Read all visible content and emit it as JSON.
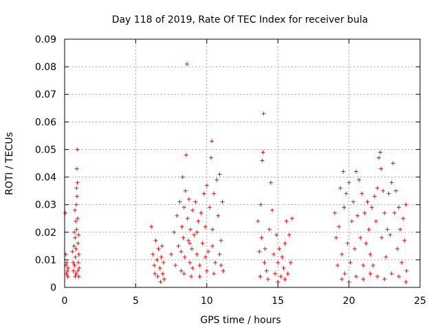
{
  "chart_data": {
    "type": "scatter",
    "title": "Day 118 of 2019, Rate Of TEC Index for receiver bula",
    "xlabel": "GPS time / hours",
    "ylabel": "ROTI / TECUs",
    "xlim": [
      0,
      25
    ],
    "ylim": [
      0,
      0.09
    ],
    "xticks": [
      0,
      5,
      10,
      15,
      20,
      25
    ],
    "xtick_labels": [
      "0",
      "5",
      "10",
      "15",
      "20",
      "25"
    ],
    "yticks": [
      0,
      0.01,
      0.02,
      0.03,
      0.04,
      0.05,
      0.06,
      0.07,
      0.08,
      0.09
    ],
    "ytick_labels": [
      "0",
      "0.01",
      "0.02",
      "0.03",
      "0.04",
      "0.05",
      "0.06",
      "0.07",
      "0.08",
      "0.09"
    ],
    "grid": true,
    "marker": "+",
    "color": "#ff0000",
    "series": [
      {
        "name": "ROTI",
        "points": [
          [
            0.05,
            0.027
          ],
          [
            0.08,
            0.012
          ],
          [
            0.1,
            0.008
          ],
          [
            0.12,
            0.005
          ],
          [
            0.15,
            0.009
          ],
          [
            0.2,
            0.006
          ],
          [
            0.22,
            0.004
          ],
          [
            0.25,
            0.007
          ],
          [
            0.55,
            0.013
          ],
          [
            0.6,
            0.009
          ],
          [
            0.62,
            0.006
          ],
          [
            0.65,
            0.015
          ],
          [
            0.68,
            0.02
          ],
          [
            0.7,
            0.008
          ],
          [
            0.72,
            0.028
          ],
          [
            0.74,
            0.018
          ],
          [
            0.76,
            0.011
          ],
          [
            0.78,
            0.024
          ],
          [
            0.8,
            0.005
          ],
          [
            0.82,
            0.03
          ],
          [
            0.84,
            0.036
          ],
          [
            0.86,
            0.043
          ],
          [
            0.88,
            0.05
          ],
          [
            0.9,
            0.038
          ],
          [
            0.92,
            0.025
          ],
          [
            0.94,
            0.016
          ],
          [
            0.96,
            0.009
          ],
          [
            0.98,
            0.004
          ],
          [
            1.0,
            0.012
          ],
          [
            1.02,
            0.007
          ],
          [
            0.85,
            0.021
          ],
          [
            0.87,
            0.033
          ],
          [
            0.8,
            0.014
          ],
          [
            0.75,
            0.004
          ],
          [
            0.93,
            0.006
          ],
          [
            0.97,
            0.019
          ],
          [
            6.1,
            0.022
          ],
          [
            6.2,
            0.012
          ],
          [
            6.3,
            0.008
          ],
          [
            6.35,
            0.005
          ],
          [
            6.4,
            0.017
          ],
          [
            6.5,
            0.01
          ],
          [
            6.55,
            0.004
          ],
          [
            6.6,
            0.014
          ],
          [
            6.7,
            0.007
          ],
          [
            6.75,
            0.002
          ],
          [
            6.8,
            0.011
          ],
          [
            6.85,
            0.015
          ],
          [
            6.9,
            0.005
          ],
          [
            6.95,
            0.009
          ],
          [
            7.0,
            0.003
          ],
          [
            7.5,
            0.012
          ],
          [
            7.7,
            0.02
          ],
          [
            7.8,
            0.008
          ],
          [
            7.9,
            0.026
          ],
          [
            8.0,
            0.015
          ],
          [
            8.1,
            0.031
          ],
          [
            8.2,
            0.006
          ],
          [
            8.25,
            0.022
          ],
          [
            8.3,
            0.04
          ],
          [
            8.35,
            0.018
          ],
          [
            8.4,
            0.029
          ],
          [
            8.45,
            0.011
          ],
          [
            8.5,
            0.035
          ],
          [
            8.55,
            0.048
          ],
          [
            8.6,
            0.081
          ],
          [
            8.65,
            0.025
          ],
          [
            8.7,
            0.017
          ],
          [
            8.75,
            0.032
          ],
          [
            8.8,
            0.009
          ],
          [
            8.85,
            0.021
          ],
          [
            8.9,
            0.004
          ],
          [
            8.95,
            0.014
          ],
          [
            9.0,
            0.028
          ],
          [
            9.1,
            0.019
          ],
          [
            9.2,
            0.031
          ],
          [
            9.3,
            0.012
          ],
          [
            9.4,
            0.024
          ],
          [
            9.5,
            0.008
          ],
          [
            9.6,
            0.027
          ],
          [
            9.7,
            0.016
          ],
          [
            9.8,
            0.034
          ],
          [
            9.9,
            0.022
          ],
          [
            10.0,
            0.037
          ],
          [
            10.1,
            0.013
          ],
          [
            10.2,
            0.029
          ],
          [
            10.3,
            0.047
          ],
          [
            10.35,
            0.053
          ],
          [
            10.4,
            0.021
          ],
          [
            10.5,
            0.034
          ],
          [
            10.6,
            0.009
          ],
          [
            10.7,
            0.039
          ],
          [
            10.8,
            0.026
          ],
          [
            10.9,
            0.041
          ],
          [
            11.0,
            0.017
          ],
          [
            11.1,
            0.031
          ],
          [
            11.15,
            0.006
          ],
          [
            8.4,
            0.005
          ],
          [
            9.0,
            0.007
          ],
          [
            9.5,
            0.004
          ],
          [
            10.0,
            0.006
          ],
          [
            10.5,
            0.005
          ],
          [
            11.0,
            0.008
          ],
          [
            8.2,
            0.013
          ],
          [
            8.8,
            0.016
          ],
          [
            9.3,
            0.02
          ],
          [
            9.9,
            0.011
          ],
          [
            10.4,
            0.015
          ],
          [
            10.9,
            0.012
          ],
          [
            13.6,
            0.024
          ],
          [
            13.7,
            0.013
          ],
          [
            13.75,
            0.004
          ],
          [
            13.8,
            0.03
          ],
          [
            13.85,
            0.018
          ],
          [
            13.9,
            0.046
          ],
          [
            13.95,
            0.049
          ],
          [
            14.0,
            0.063
          ],
          [
            14.05,
            0.009
          ],
          [
            14.1,
            0.014
          ],
          [
            14.2,
            0.006
          ],
          [
            14.4,
            0.021
          ],
          [
            14.5,
            0.038
          ],
          [
            14.6,
            0.028
          ],
          [
            14.7,
            0.012
          ],
          [
            14.8,
            0.005
          ],
          [
            14.9,
            0.019
          ],
          [
            15.0,
            0.009
          ],
          [
            15.1,
            0.014
          ],
          [
            15.2,
            0.004
          ],
          [
            15.3,
            0.011
          ],
          [
            15.4,
            0.007
          ],
          [
            15.5,
            0.016
          ],
          [
            15.6,
            0.024
          ],
          [
            15.7,
            0.005
          ],
          [
            15.8,
            0.019
          ],
          [
            15.9,
            0.009
          ],
          [
            16.0,
            0.025
          ],
          [
            14.3,
            0.003
          ],
          [
            15.0,
            0.002
          ],
          [
            15.5,
            0.003
          ],
          [
            19.0,
            0.027
          ],
          [
            19.1,
            0.018
          ],
          [
            19.2,
            0.008
          ],
          [
            19.3,
            0.022
          ],
          [
            19.4,
            0.036
          ],
          [
            19.5,
            0.012
          ],
          [
            19.6,
            0.042
          ],
          [
            19.65,
            0.029
          ],
          [
            19.7,
            0.005
          ],
          [
            19.8,
            0.034
          ],
          [
            19.9,
            0.016
          ],
          [
            20.0,
            0.038
          ],
          [
            20.1,
            0.009
          ],
          [
            20.2,
            0.024
          ],
          [
            20.3,
            0.031
          ],
          [
            20.4,
            0.014
          ],
          [
            20.5,
            0.042
          ],
          [
            20.6,
            0.026
          ],
          [
            20.7,
            0.039
          ],
          [
            20.8,
            0.018
          ],
          [
            20.9,
            0.034
          ],
          [
            21.0,
            0.008
          ],
          [
            21.1,
            0.027
          ],
          [
            21.2,
            0.016
          ],
          [
            21.3,
            0.031
          ],
          [
            21.4,
            0.021
          ],
          [
            21.5,
            0.012
          ],
          [
            21.6,
            0.029
          ],
          [
            21.7,
            0.008
          ],
          [
            21.8,
            0.033
          ],
          [
            21.9,
            0.024
          ],
          [
            22.0,
            0.036
          ],
          [
            22.1,
            0.047
          ],
          [
            22.2,
            0.049
          ],
          [
            22.25,
            0.043
          ],
          [
            22.3,
            0.018
          ],
          [
            22.4,
            0.035
          ],
          [
            22.5,
            0.027
          ],
          [
            22.6,
            0.011
          ],
          [
            22.7,
            0.021
          ],
          [
            22.8,
            0.034
          ],
          [
            22.9,
            0.019
          ],
          [
            23.0,
            0.038
          ],
          [
            23.1,
            0.045
          ],
          [
            23.2,
            0.027
          ],
          [
            23.3,
            0.035
          ],
          [
            23.4,
            0.014
          ],
          [
            23.5,
            0.029
          ],
          [
            23.6,
            0.021
          ],
          [
            23.7,
            0.009
          ],
          [
            23.8,
            0.025
          ],
          [
            23.9,
            0.017
          ],
          [
            24.0,
            0.03
          ],
          [
            24.05,
            0.006
          ],
          [
            19.5,
            0.003
          ],
          [
            20.0,
            0.002
          ],
          [
            20.5,
            0.004
          ],
          [
            21.0,
            0.003
          ],
          [
            21.5,
            0.005
          ],
          [
            22.0,
            0.004
          ],
          [
            22.5,
            0.003
          ],
          [
            23.0,
            0.005
          ],
          [
            23.5,
            0.004
          ],
          [
            24.0,
            0.002
          ]
        ]
      }
    ]
  }
}
